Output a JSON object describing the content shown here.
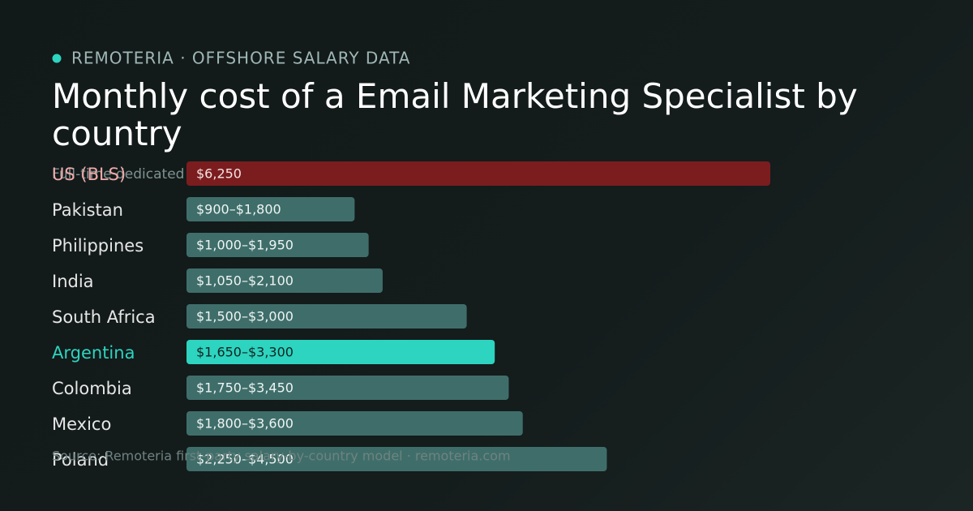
{
  "chart_data": {
    "type": "bar",
    "orientation": "horizontal",
    "brand": "REMOTERIA · OFFSHORE SALARY DATA",
    "title": "Monthly cost of a Email Marketing Specialist by country",
    "subtitle": "Full-time dedicated",
    "footer": "Source: Remoteria first-party salary-by-country model · remoteria.com",
    "categories": [
      "US (BLS)",
      "Pakistan",
      "Philippines",
      "India",
      "South Africa",
      "Argentina",
      "Colombia",
      "Mexico",
      "Poland"
    ],
    "values": [
      6250,
      1800,
      1950,
      2100,
      3000,
      3300,
      3450,
      3600,
      4500
    ],
    "value_labels": [
      "$6,250",
      "$900–$1,800",
      "$1,000–$1,950",
      "$1,050–$2,100",
      "$1,500–$3,000",
      "$1,650–$3,300",
      "$1,750–$3,450",
      "$1,800–$3,600",
      "$2,250–$4,500"
    ],
    "colors": [
      "#7b1d1f",
      "#3f6e6a",
      "#3f6e6a",
      "#3f6e6a",
      "#3f6e6a",
      "#2dd4bf",
      "#3f6e6a",
      "#3f6e6a",
      "#3f6e6a"
    ],
    "label_colors": [
      "#f2a9a9",
      "#e6e6e6",
      "#e6e6e6",
      "#e6e6e6",
      "#e6e6e6",
      "#2dd4bf",
      "#e6e6e6",
      "#e6e6e6",
      "#e6e6e6"
    ],
    "value_label_colors": [
      "#f3e3e3",
      "#eef4f3",
      "#eef4f3",
      "#eef4f3",
      "#eef4f3",
      "#0f2422",
      "#eef4f3",
      "#eef4f3",
      "#eef4f3"
    ],
    "xlim": [
      0,
      6250
    ]
  }
}
